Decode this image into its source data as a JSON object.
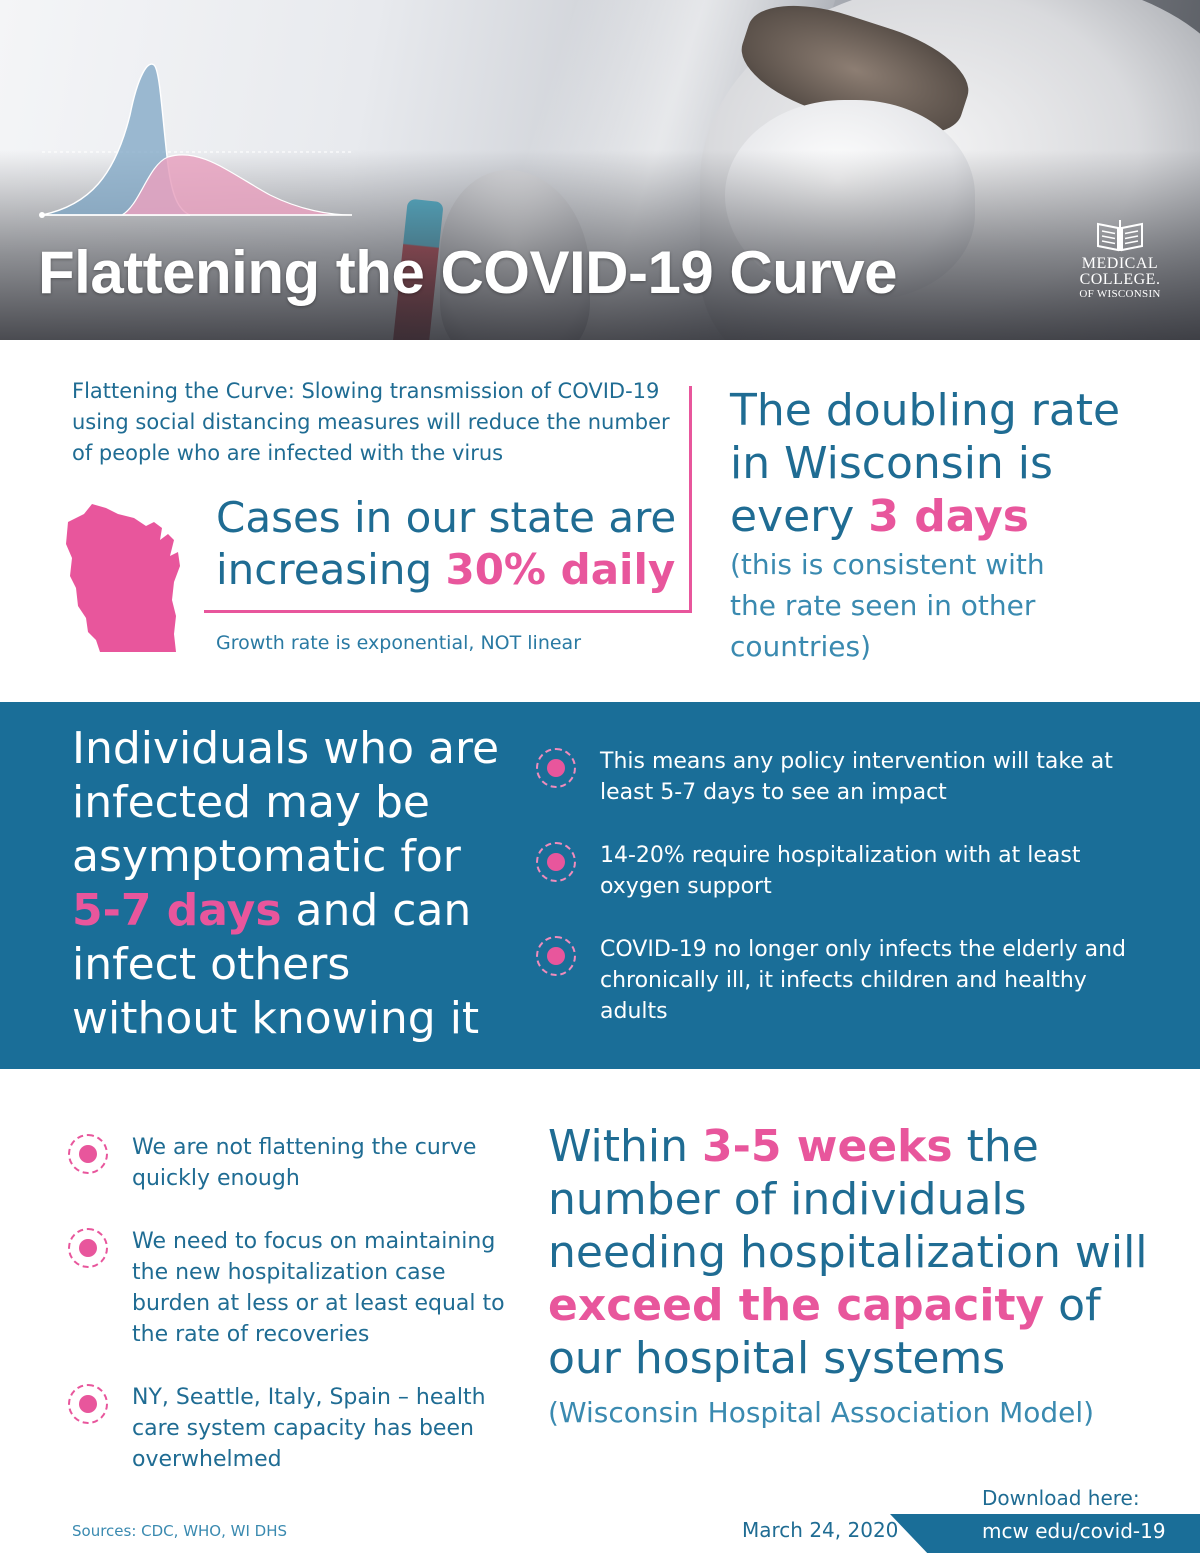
{
  "header": {
    "title": "Flattening the COVID-19 Curve",
    "logo_line1": "MEDICAL",
    "logo_line2": "COLLEGE.",
    "logo_line3": "OF WISCONSIN"
  },
  "section1": {
    "intro": "Flattening the Curve: Slowing transmission of COVID-19 using social distancing measures will reduce the number of people who are infected with the virus",
    "cases_prefix": "Cases in our state are increasing ",
    "cases_highlight": "30% daily",
    "growth_note": "Growth rate is exponential, NOT linear",
    "doubling_prefix": "The doubling rate in Wisconsin is every ",
    "doubling_highlight": "3 days",
    "doubling_sub": "(this is consistent with the rate seen in other countries)"
  },
  "section2": {
    "asym_prefix": "Individuals who are infected may be asymptomatic for ",
    "asym_highlight": "5-7 days",
    "asym_suffix": " and can infect others without knowing it",
    "bullets": [
      "This means any policy intervention will take at least 5-7 days to see an impact",
      "14-20% require hospitalization with at least oxygen support",
      "COVID-19 no longer only infects the elderly and chronically ill, it infects children and healthy adults"
    ]
  },
  "section3": {
    "bullets": [
      "We are not flattening the curve quickly enough",
      "We need to focus on maintaining the new hospitalization case burden at less or at least equal to the rate of recoveries",
      "NY, Seattle, Italy, Spain – health care system capacity has been overwhelmed"
    ],
    "within_prefix": "Within ",
    "within_highlight1": "3-5 weeks",
    "within_middle": " the number of individuals needing hospitalization will ",
    "within_highlight2": "exceed the capacity",
    "within_suffix": " of our hospital systems",
    "model": "(Wisconsin Hospital Association Model)"
  },
  "footer": {
    "sources": "Sources: CDC, WHO, WI DHS",
    "date": "March 24, 2020",
    "download_label": "Download here:",
    "download_url": "mcw edu/covid-19"
  },
  "colors": {
    "brand_blue": "#1a6e98",
    "text_blue": "#1f6c93",
    "accent_pink": "#e8569c",
    "curve_blue": "#7ea6c4",
    "curve_pink": "#e7a2bf"
  }
}
